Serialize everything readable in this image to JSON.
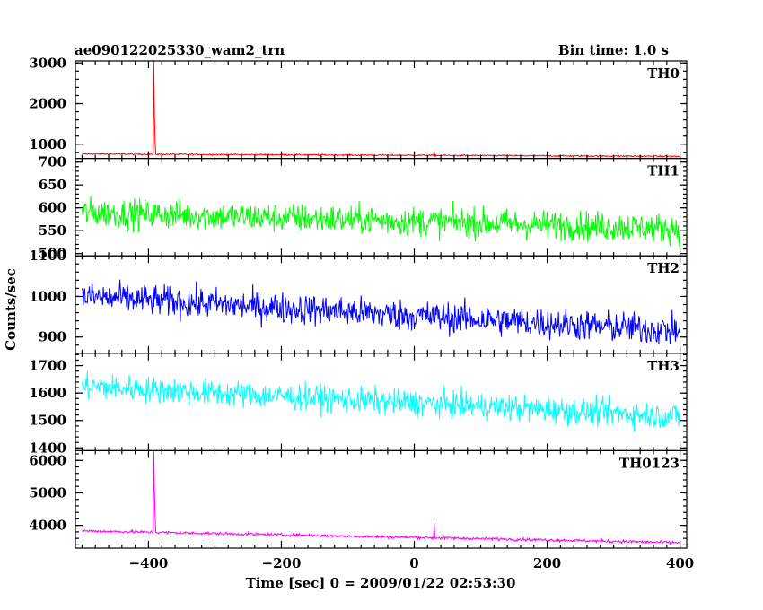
{
  "header": {
    "title": "ae090122025330_wam2_trn",
    "bin_time": "Bin time: 1.0 s"
  },
  "chart_data": {
    "type": "line",
    "xlabel": "Time [sec] 0 = 2009/01/22 02:53:30",
    "ylabel": "Counts/sec",
    "xlim": [
      -510,
      410
    ],
    "x_ticks": [
      -400,
      -200,
      0,
      200,
      400
    ],
    "x_tick_labels": [
      "−400",
      "−200",
      "0",
      "200",
      "400"
    ],
    "grid": false,
    "panels": [
      {
        "name": "TH0",
        "color": "#ff0000",
        "ylim": [
          650,
          3050
        ],
        "y_ticks": [
          1000,
          2000,
          3000
        ],
        "y_tick_labels": [
          "1000",
          "2000",
          "3000"
        ],
        "x_start": -500,
        "x_end": 400,
        "base_start": 760,
        "base_end": 700,
        "noise": 18,
        "spikes": [
          {
            "x": -392,
            "y": 3050
          },
          {
            "x": -391,
            "y": 1720
          },
          {
            "x": -390,
            "y": 1100
          },
          {
            "x": 30,
            "y": 820
          }
        ]
      },
      {
        "name": "TH1",
        "color": "#00ff00",
        "ylim": [
          495,
          708
        ],
        "y_ticks": [
          500,
          550,
          600,
          650,
          700
        ],
        "y_tick_labels": [
          "500",
          "550",
          "600",
          "650",
          "700"
        ],
        "x_start": -500,
        "x_end": 400,
        "base_start": 590,
        "base_end": 555,
        "noise": 32,
        "spikes": []
      },
      {
        "name": "TH2",
        "color": "#0000ff",
        "ylim": [
          860,
          1100
        ],
        "y_ticks": [
          900,
          1000,
          1100
        ],
        "y_tick_labels": [
          "900",
          "1000",
          "1100"
        ],
        "x_start": -500,
        "x_end": 400,
        "base_start": 1000,
        "base_end": 915,
        "noise": 38,
        "spikes": []
      },
      {
        "name": "TH3",
        "color": "#00ffff",
        "ylim": [
          1390,
          1745
        ],
        "y_ticks": [
          1400,
          1500,
          1600,
          1700
        ],
        "y_tick_labels": [
          "1400",
          "1500",
          "1600",
          "1700"
        ],
        "x_start": -500,
        "x_end": 400,
        "base_start": 1625,
        "base_end": 1515,
        "noise": 48,
        "spikes": []
      },
      {
        "name": "TH0123",
        "color": "#ff00ff",
        "ylim": [
          3300,
          6300
        ],
        "y_ticks": [
          4000,
          5000,
          6000
        ],
        "y_tick_labels": [
          "4000",
          "5000",
          "6000"
        ],
        "x_start": -500,
        "x_end": 400,
        "base_start": 3830,
        "base_end": 3470,
        "noise": 45,
        "spikes": [
          {
            "x": -392,
            "y": 6300
          },
          {
            "x": -391,
            "y": 5050
          },
          {
            "x": -390,
            "y": 4300
          },
          {
            "x": 30,
            "y": 4080
          }
        ]
      }
    ]
  }
}
